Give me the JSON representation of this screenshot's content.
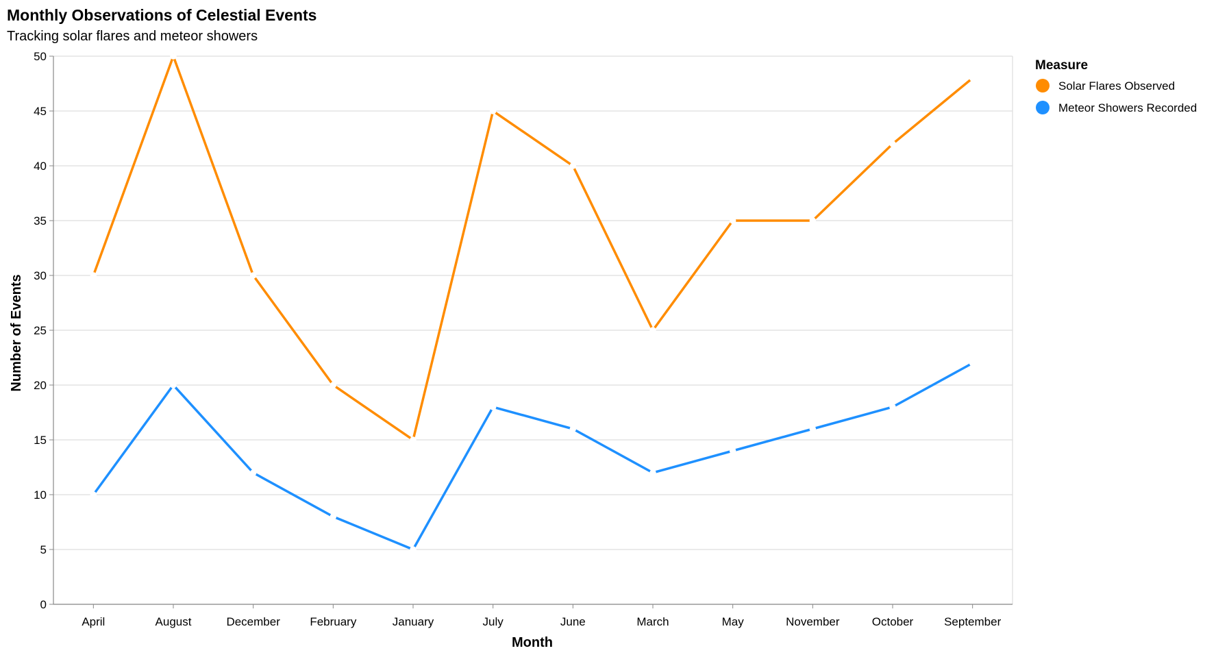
{
  "chart_data": {
    "type": "line",
    "title": "Monthly Observations of Celestial Events",
    "subtitle": "Tracking solar flares and meteor showers",
    "xlabel": "Month",
    "ylabel": "Number of Events",
    "categories": [
      "April",
      "August",
      "December",
      "February",
      "January",
      "July",
      "June",
      "March",
      "May",
      "November",
      "October",
      "September"
    ],
    "ylim": [
      0,
      50
    ],
    "yticks": [
      0,
      5,
      10,
      15,
      20,
      25,
      30,
      35,
      40,
      45,
      50
    ],
    "grid": true,
    "legend": {
      "title": "Measure",
      "placement": "right"
    },
    "series": [
      {
        "name": "Solar Flares Observed",
        "color": "#ff8c00",
        "values": [
          30,
          50,
          30,
          20,
          15,
          45,
          40,
          25,
          35,
          35,
          42,
          48
        ]
      },
      {
        "name": "Meteor Showers Recorded",
        "color": "#1e90ff",
        "values": [
          10,
          20,
          12,
          8,
          5,
          18,
          16,
          12,
          14,
          16,
          18,
          22
        ]
      }
    ]
  }
}
